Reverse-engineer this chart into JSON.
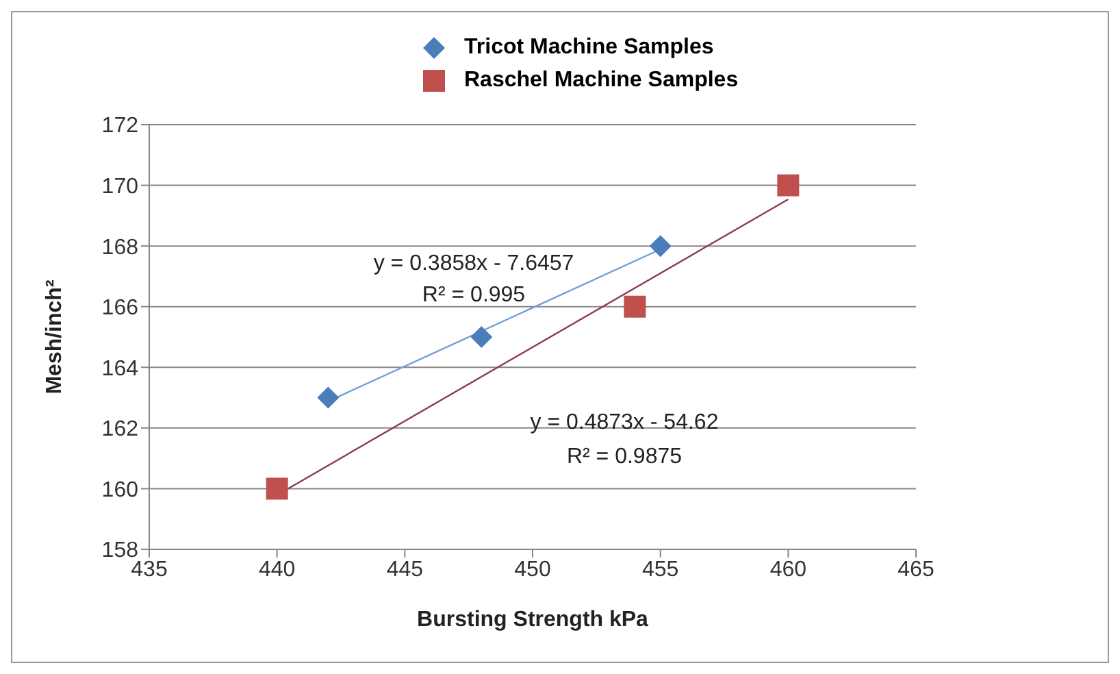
{
  "chart_data": {
    "type": "scatter",
    "xlabel": "Bursting Strength kPa",
    "ylabel": "Mesh/inch²",
    "xlim": [
      435,
      465
    ],
    "xticks": [
      435,
      440,
      445,
      450,
      455,
      460,
      465
    ],
    "ylim": [
      158,
      172
    ],
    "yticks": [
      158,
      160,
      162,
      164,
      166,
      168,
      170,
      172
    ],
    "grid": "y",
    "legend": "top",
    "series": [
      {
        "name": "Tricot Machine Samples",
        "marker": "diamond",
        "color": "#4a7ebb",
        "x": [
          442,
          448,
          455
        ],
        "values": [
          163,
          165,
          168
        ]
      },
      {
        "name": "Raschel Machine Samples",
        "marker": "square",
        "color": "#c0504d",
        "x": [
          440,
          454,
          460
        ],
        "values": [
          160,
          166,
          170
        ]
      },
      {
        "type": "line",
        "marker": "none",
        "line_style": "solid",
        "color": "#6f9fd8",
        "x": [
          442,
          455
        ],
        "values": [
          162.88,
          167.89
        ]
      },
      {
        "type": "line",
        "marker": "none",
        "line_style": "solid",
        "color": "#8e3a4f",
        "x": [
          440,
          460
        ],
        "values": [
          159.79,
          169.54
        ]
      }
    ],
    "annotations": [
      "y = 0.3858x - 7.6457",
      "R² = 0.995",
      "y = 0.4873x - 54.62",
      "R² = 0.9875"
    ]
  }
}
